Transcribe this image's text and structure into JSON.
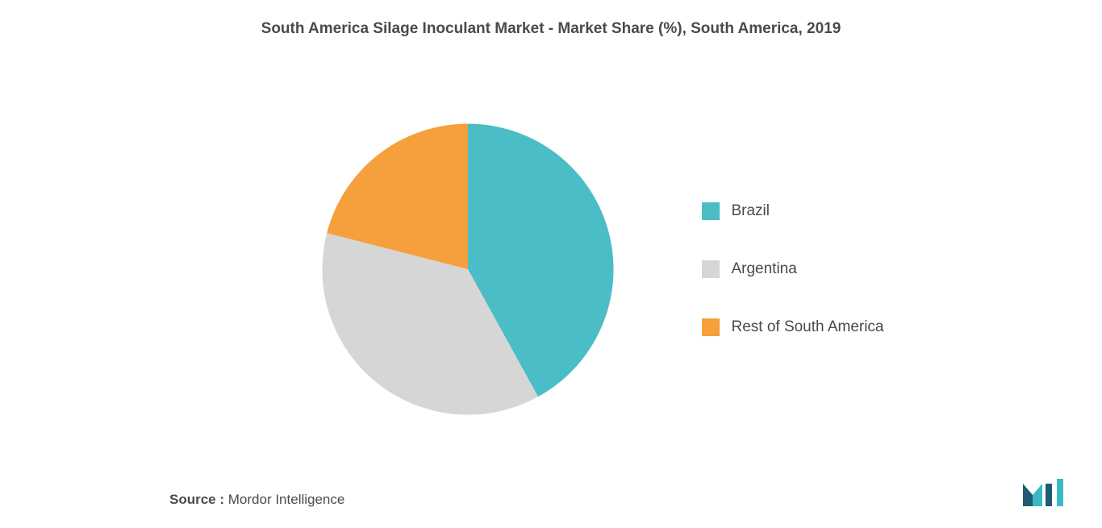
{
  "chart": {
    "type": "pie",
    "title": "South America Silage Inoculant Market - Market Share (%), South America, 2019",
    "title_fontsize": 19,
    "title_color": "#4a4a4a",
    "background_color": "#ffffff",
    "radius": 190,
    "slices": [
      {
        "label": "Brazil",
        "value": 42,
        "color": "#4bbdc6"
      },
      {
        "label": "Argentina",
        "value": 37,
        "color": "#d6d6d6"
      },
      {
        "label": "Rest of South America",
        "value": 21,
        "color": "#f5a03c"
      }
    ],
    "start_angle_deg": -90,
    "legend": {
      "position": "right",
      "fontsize": 19,
      "text_color": "#4a4a4a",
      "swatch_size": 22,
      "gap": 50
    }
  },
  "source": {
    "prefix": "Source :",
    "name": "Mordor Intelligence",
    "fontsize": 17,
    "color": "#4a4a4a"
  },
  "logo": {
    "name": "mordor-intelligence-logo",
    "colors": [
      "#1f5b74",
      "#3cb8c4"
    ]
  }
}
